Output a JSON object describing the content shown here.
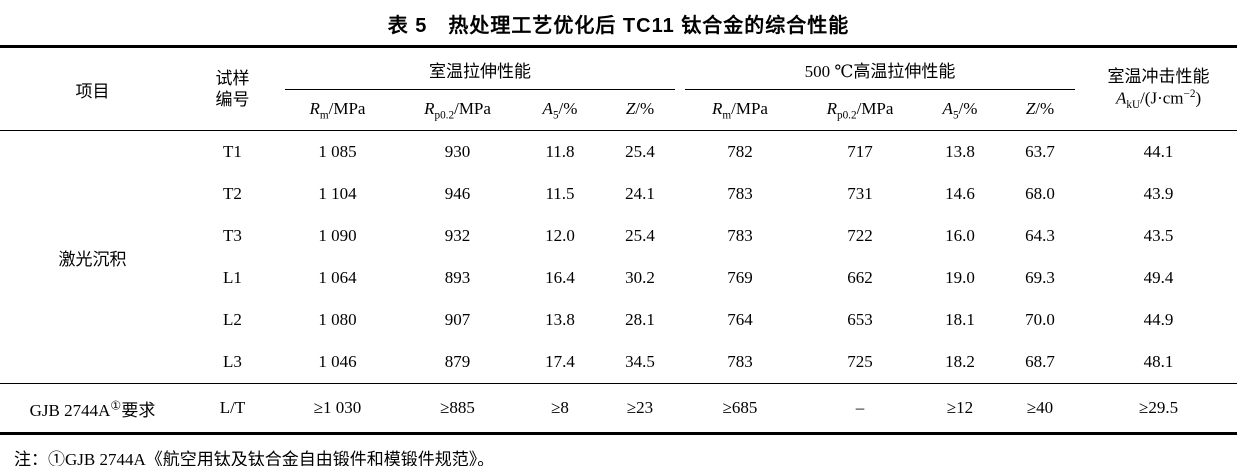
{
  "title": "表 5　热处理工艺优化后 TC11 钛合金的综合性能",
  "table": {
    "headers": {
      "item": "项目",
      "sample_line1": "试样",
      "sample_line2": "编号",
      "group_room": "室温拉伸性能",
      "group_high": "500 ℃高温拉伸性能",
      "impact_title": "室温冲击性能",
      "impact": {
        "v": "A",
        "s": "kU",
        "u1": "/(J·cm",
        "sup": "−2",
        "u2": ")"
      },
      "sub": [
        {
          "v": "R",
          "s": "m",
          "u": "/MPa"
        },
        {
          "v": "R",
          "s": "p0.2",
          "u": "/MPa"
        },
        {
          "v": "A",
          "s": "5",
          "u": "/%"
        },
        {
          "v": "Z",
          "s": "",
          "u": "/%"
        },
        {
          "v": "R",
          "s": "m",
          "u": "/MPa"
        },
        {
          "v": "R",
          "s": "p0.2",
          "u": "/MPa"
        },
        {
          "v": "A",
          "s": "5",
          "u": "/%"
        },
        {
          "v": "Z",
          "s": "",
          "u": "/%"
        }
      ]
    },
    "group_label": "激光沉积",
    "rows": [
      {
        "id": "T1",
        "values": [
          "1 085",
          "930",
          "11.8",
          "25.4",
          "782",
          "717",
          "13.8",
          "63.7",
          "44.1"
        ]
      },
      {
        "id": "T2",
        "values": [
          "1 104",
          "946",
          "11.5",
          "24.1",
          "783",
          "731",
          "14.6",
          "68.0",
          "43.9"
        ]
      },
      {
        "id": "T3",
        "values": [
          "1 090",
          "932",
          "12.0",
          "25.4",
          "783",
          "722",
          "16.0",
          "64.3",
          "43.5"
        ]
      },
      {
        "id": "L1",
        "values": [
          "1 064",
          "893",
          "16.4",
          "30.2",
          "769",
          "662",
          "19.0",
          "69.3",
          "49.4"
        ]
      },
      {
        "id": "L2",
        "values": [
          "1 080",
          "907",
          "13.8",
          "28.1",
          "764",
          "653",
          "18.1",
          "70.0",
          "44.9"
        ]
      },
      {
        "id": "L3",
        "values": [
          "1 046",
          "879",
          "17.4",
          "34.5",
          "783",
          "725",
          "18.2",
          "68.7",
          "48.1"
        ]
      }
    ],
    "requirement": {
      "label": "GJB 2744A",
      "label_sup": "①",
      "label_suffix": "要求",
      "sample": "L/T",
      "values": [
        "≥1 030",
        "≥885",
        "≥8",
        "≥23",
        "≥685",
        "–",
        "≥12",
        "≥40",
        "≥29.5"
      ]
    }
  },
  "note": "注：①GJB 2744A《航空用钛及钛合金自由锻件和模锻件规范》。"
}
